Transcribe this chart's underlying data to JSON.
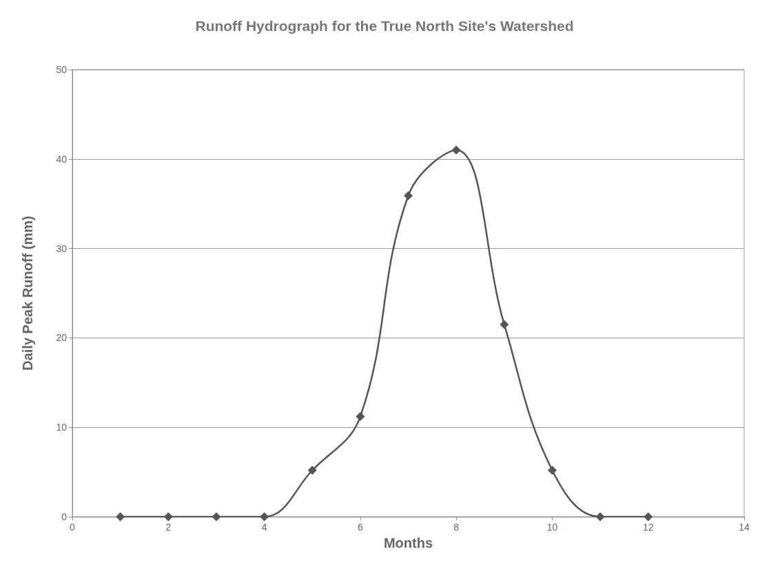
{
  "chart_data": {
    "type": "line",
    "title": "Runoff Hydrograph for the True North Site's Watershed",
    "xlabel": "Months",
    "ylabel": "Daily Peak Runoff (mm)",
    "x": [
      1,
      2,
      3,
      4,
      5,
      6,
      7,
      8,
      9,
      10,
      11,
      12
    ],
    "series": [
      {
        "color": "#555555",
        "values": [
          0,
          0,
          0,
          0,
          5.2,
          11.2,
          35.9,
          41.0,
          21.5,
          5.2,
          0,
          0
        ]
      }
    ],
    "xlim": [
      0,
      14
    ],
    "xticks": [
      0,
      2,
      4,
      6,
      8,
      10,
      12,
      14
    ],
    "ylim": [
      0,
      50
    ],
    "yticks": [
      0,
      10,
      20,
      30,
      40,
      50
    ],
    "grid": "y",
    "marker": "diamond",
    "line_style": "solid"
  }
}
